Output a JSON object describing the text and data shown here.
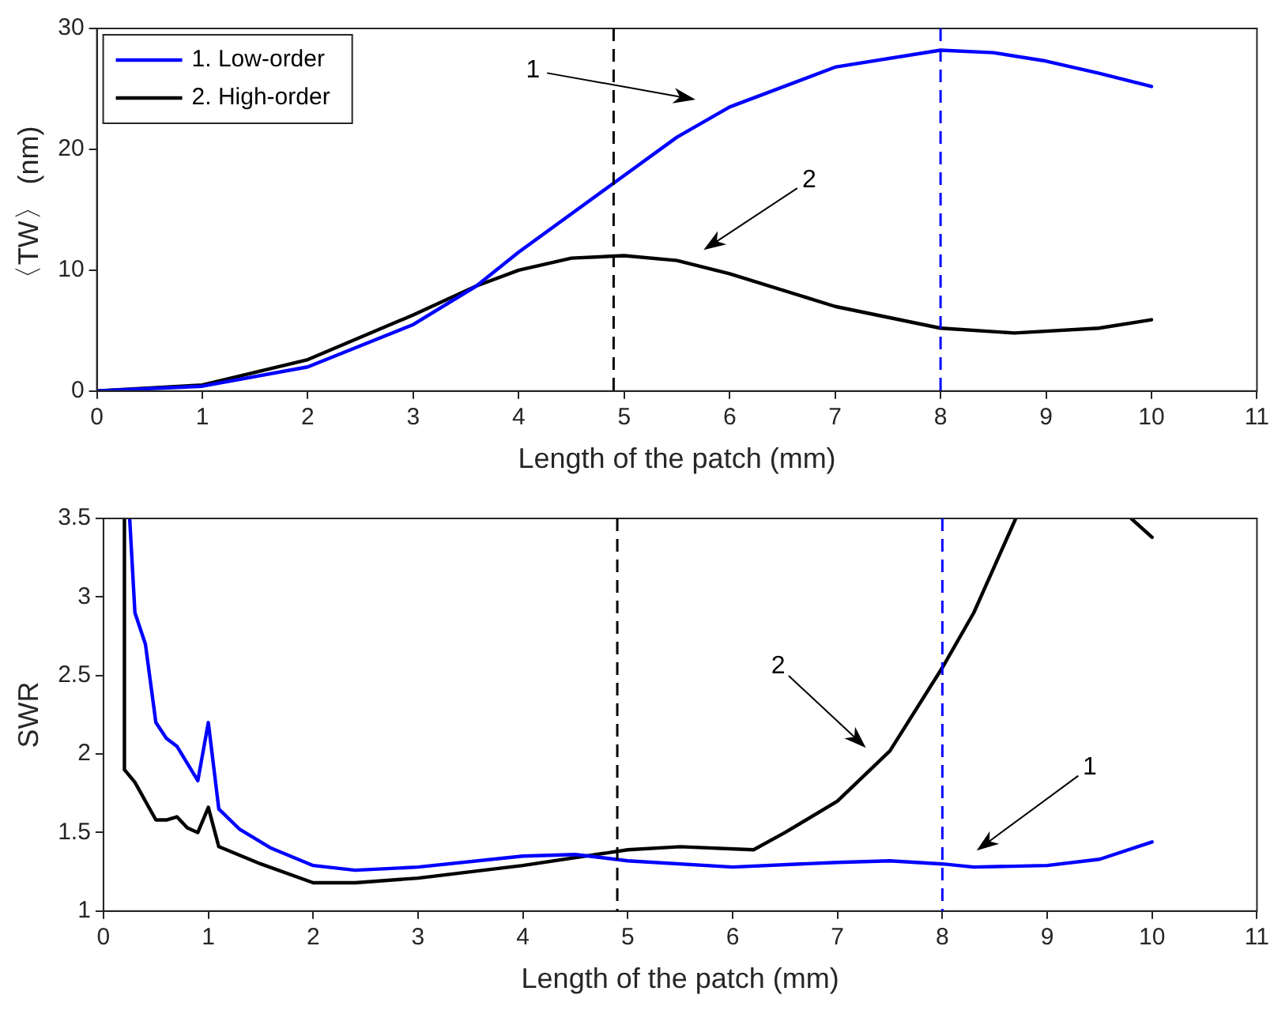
{
  "chart_data": [
    {
      "type": "line",
      "xlabel": "Length of the patch (mm)",
      "ylabel": "〈TW〉 (nm)",
      "xlim": [
        0,
        11
      ],
      "xticks": [
        0,
        1,
        2,
        3,
        4,
        5,
        6,
        7,
        8,
        9,
        10,
        11
      ],
      "ylim": [
        0,
        30
      ],
      "yticks": [
        0,
        10,
        20,
        30
      ],
      "grid": false,
      "legend": "top left",
      "series": [
        {
          "name": "1. Low-order",
          "color": "#0000ff",
          "x": [
            0,
            1,
            2,
            3,
            3.6,
            4,
            4.9,
            5.5,
            6,
            7,
            8,
            8.5,
            9,
            9.5,
            10
          ],
          "values": [
            0,
            0.4,
            2,
            5.5,
            8.7,
            11.5,
            17.2,
            21,
            23.5,
            26.8,
            28.2,
            28,
            27.3,
            26.3,
            25.2
          ]
        },
        {
          "name": "2. High-order",
          "color": "#000000",
          "x": [
            0,
            1,
            2,
            3,
            3.6,
            4,
            4.5,
            5,
            5.5,
            6,
            7,
            8,
            8.7,
            9.5,
            10
          ],
          "values": [
            0,
            0.5,
            2.6,
            6.3,
            8.7,
            10,
            11,
            11.2,
            10.8,
            9.7,
            7,
            5.2,
            4.8,
            5.2,
            5.9
          ]
        }
      ],
      "ref_lines": [
        {
          "axis": "x",
          "value": 4.9,
          "color": "#000000",
          "line_style": "dashed"
        },
        {
          "axis": "x",
          "value": 8,
          "color": "#0000ff",
          "line_style": "dashed"
        }
      ],
      "annotations": [
        "1",
        "2"
      ]
    },
    {
      "type": "line",
      "xlabel": "Length of the patch (mm)",
      "ylabel": "SWR",
      "xlim": [
        0,
        11
      ],
      "xticks": [
        0,
        1,
        2,
        3,
        4,
        5,
        6,
        7,
        8,
        9,
        10,
        11
      ],
      "ylim": [
        1,
        3.5
      ],
      "yticks": [
        1,
        1.5,
        2,
        2.5,
        3,
        3.5
      ],
      "grid": false,
      "series": [
        {
          "color": "#0000ff",
          "x": [
            0.25,
            0.3,
            0.4,
            0.5,
            0.6,
            0.7,
            0.9,
            1.0,
            1.1,
            1.3,
            1.6,
            2,
            2.4,
            3,
            4,
            4.5,
            5,
            6,
            7,
            7.5,
            8,
            8.3,
            9,
            9.5,
            10
          ],
          "values": [
            3.5,
            2.9,
            2.7,
            2.2,
            2.1,
            2.05,
            1.83,
            2.2,
            1.65,
            1.52,
            1.4,
            1.29,
            1.26,
            1.28,
            1.35,
            1.36,
            1.32,
            1.28,
            1.31,
            1.32,
            1.3,
            1.28,
            1.29,
            1.33,
            1.44
          ]
        },
        {
          "color": "#000000",
          "x": [
            0.2,
            0.2,
            0.3,
            0.5,
            0.6,
            0.7,
            0.8,
            0.9,
            1.0,
            1.1,
            1.5,
            2,
            2.4,
            3,
            4,
            5,
            5.5,
            6.2,
            6.5,
            7,
            7.5,
            8,
            8.3,
            8.7,
            9.2,
            9.8,
            10
          ],
          "values": [
            3.5,
            1.9,
            1.82,
            1.58,
            1.58,
            1.6,
            1.53,
            1.5,
            1.66,
            1.41,
            1.3,
            1.18,
            1.18,
            1.21,
            1.29,
            1.39,
            1.41,
            1.39,
            1.5,
            1.7,
            2.02,
            2.55,
            2.9,
            3.5,
            null,
            3.5,
            3.38
          ]
        }
      ],
      "ref_lines": [
        {
          "axis": "x",
          "value": 4.9,
          "color": "#000000",
          "line_style": "dashed"
        },
        {
          "axis": "x",
          "value": 8,
          "color": "#0000ff",
          "line_style": "dashed"
        }
      ],
      "annotations": [
        "2",
        "1"
      ]
    }
  ]
}
